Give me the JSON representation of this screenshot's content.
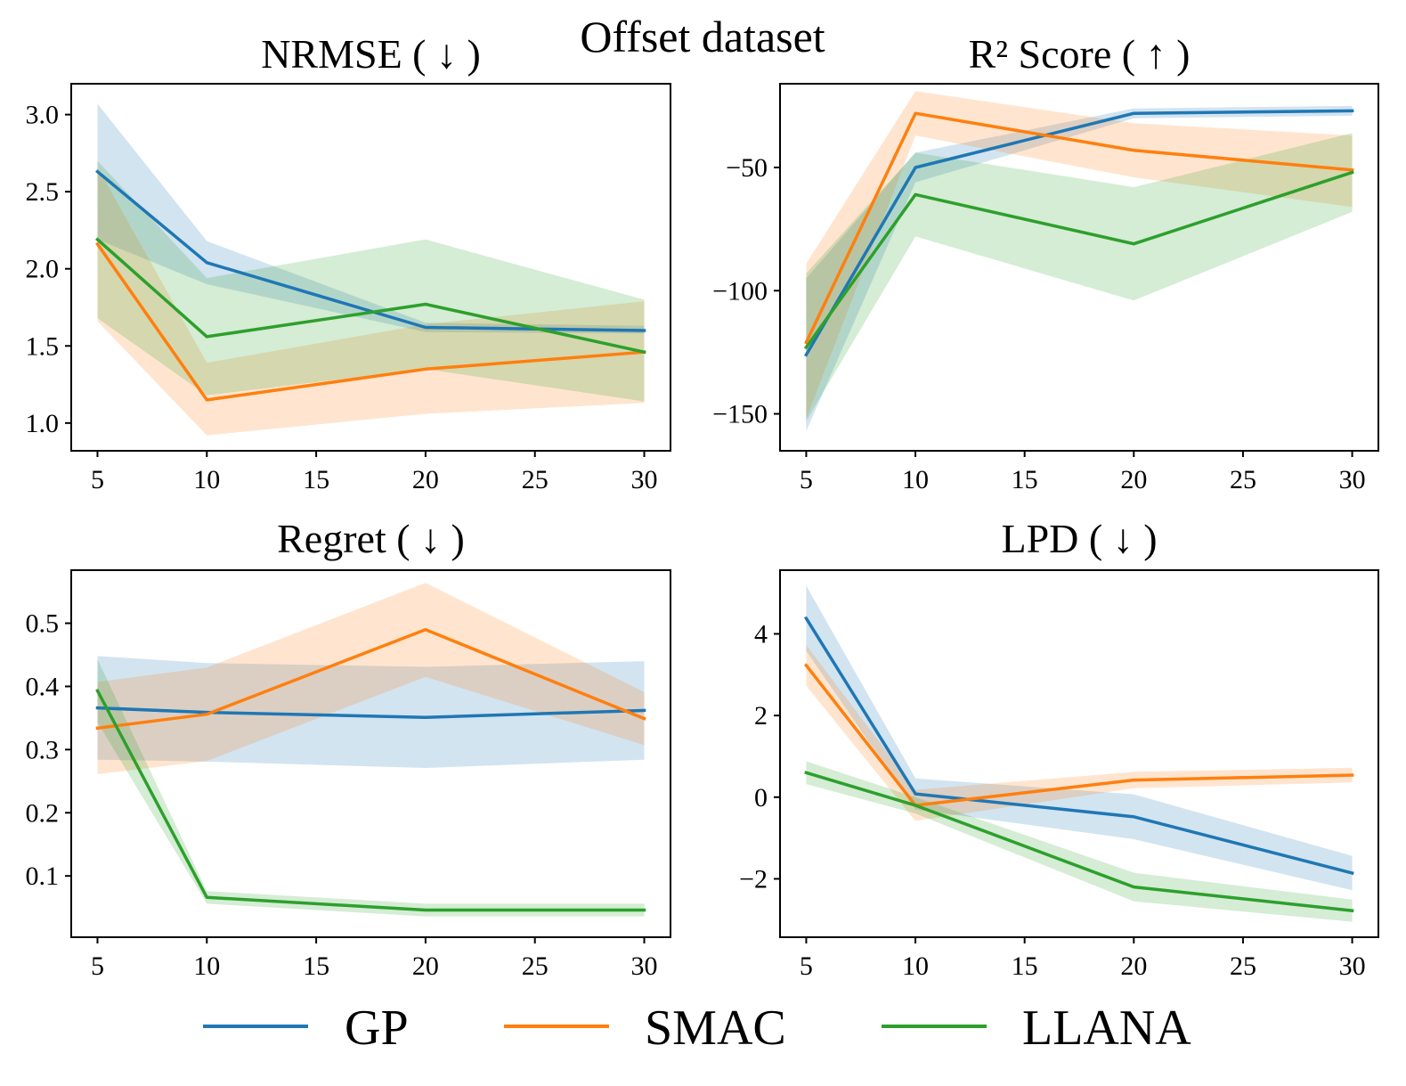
{
  "figure": {
    "title": "Offset dataset",
    "legend": [
      {
        "name": "GP",
        "color": "#1f77b4"
      },
      {
        "name": "SMAC",
        "color": "#ff7f0e"
      },
      {
        "name": "LLANA",
        "color": "#2ca02c"
      }
    ]
  },
  "chart_data": [
    {
      "type": "line",
      "title": "NRMSE ( ↓ )",
      "x": [
        5,
        10,
        20,
        30
      ],
      "xlim": [
        3.8,
        31.2
      ],
      "ylim": [
        0.82,
        3.2
      ],
      "xticks": [
        5,
        10,
        15,
        20,
        25,
        30
      ],
      "xtick_labels": [
        "5",
        "10",
        "15",
        "20",
        "25",
        "30"
      ],
      "yticks": [
        1.0,
        1.5,
        2.0,
        2.5,
        3.0
      ],
      "ytick_labels": [
        "1.0",
        "1.5",
        "2.0",
        "2.5",
        "3.0"
      ],
      "series": [
        {
          "name": "GP",
          "color": "#1f77b4",
          "values": [
            2.63,
            2.04,
            1.62,
            1.6
          ],
          "lower": [
            2.19,
            1.9,
            1.59,
            1.58
          ],
          "upper": [
            3.07,
            2.18,
            1.65,
            1.63
          ]
        },
        {
          "name": "SMAC",
          "color": "#ff7f0e",
          "values": [
            2.16,
            1.15,
            1.35,
            1.46
          ],
          "lower": [
            1.66,
            0.92,
            1.06,
            1.13
          ],
          "upper": [
            2.66,
            1.39,
            1.64,
            1.79
          ]
        },
        {
          "name": "LLANA",
          "color": "#2ca02c",
          "values": [
            2.19,
            1.56,
            1.77,
            1.46
          ],
          "lower": [
            1.68,
            1.18,
            1.35,
            1.14
          ],
          "upper": [
            2.7,
            1.94,
            2.19,
            1.8
          ]
        }
      ]
    },
    {
      "type": "line",
      "title": "R² Score ( ↑ )",
      "x": [
        5,
        10,
        20,
        30
      ],
      "xlim": [
        3.8,
        31.2
      ],
      "ylim": [
        -165,
        -16
      ],
      "xticks": [
        5,
        10,
        15,
        20,
        25,
        30
      ],
      "xtick_labels": [
        "5",
        "10",
        "15",
        "20",
        "25",
        "30"
      ],
      "yticks": [
        -150,
        -100,
        -50
      ],
      "ytick_labels": [
        "−150",
        "−100",
        "−50"
      ],
      "series": [
        {
          "name": "GP",
          "color": "#1f77b4",
          "values": [
            -126,
            -50,
            -28,
            -27
          ],
          "lower": [
            -157,
            -56,
            -30,
            -29
          ],
          "upper": [
            -95,
            -44,
            -26,
            -25
          ]
        },
        {
          "name": "SMAC",
          "color": "#ff7f0e",
          "values": [
            -121,
            -28,
            -43,
            -51
          ],
          "lower": [
            -152,
            -37,
            -54,
            -66
          ],
          "upper": [
            -89,
            -19,
            -32,
            -37
          ]
        },
        {
          "name": "LLANA",
          "color": "#2ca02c",
          "values": [
            -123,
            -61,
            -81,
            -52
          ],
          "lower": [
            -153,
            -78,
            -104,
            -68
          ],
          "upper": [
            -93,
            -44,
            -58,
            -36
          ]
        }
      ]
    },
    {
      "type": "line",
      "title": "Regret ( ↓ )",
      "x": [
        5,
        10,
        20,
        30
      ],
      "xlim": [
        3.8,
        31.2
      ],
      "ylim": [
        0.003,
        0.584
      ],
      "xticks": [
        5,
        10,
        15,
        20,
        25,
        30
      ],
      "xtick_labels": [
        "5",
        "10",
        "15",
        "20",
        "25",
        "30"
      ],
      "yticks": [
        0.1,
        0.2,
        0.3,
        0.4,
        0.5
      ],
      "ytick_labels": [
        "0.1",
        "0.2",
        "0.3",
        "0.4",
        "0.5"
      ],
      "series": [
        {
          "name": "GP",
          "color": "#1f77b4",
          "values": [
            0.366,
            0.359,
            0.351,
            0.362
          ],
          "lower": [
            0.284,
            0.281,
            0.271,
            0.284
          ],
          "upper": [
            0.448,
            0.437,
            0.431,
            0.44
          ]
        },
        {
          "name": "SMAC",
          "color": "#ff7f0e",
          "values": [
            0.334,
            0.356,
            0.49,
            0.349
          ],
          "lower": [
            0.261,
            0.282,
            0.415,
            0.307
          ],
          "upper": [
            0.407,
            0.43,
            0.564,
            0.391
          ]
        },
        {
          "name": "LLANA",
          "color": "#2ca02c",
          "values": [
            0.393,
            0.066,
            0.046,
            0.046
          ],
          "lower": [
            0.343,
            0.056,
            0.036,
            0.036
          ],
          "upper": [
            0.443,
            0.076,
            0.056,
            0.056
          ]
        }
      ]
    },
    {
      "type": "line",
      "title": "LPD ( ↓ )",
      "x": [
        5,
        10,
        20,
        30
      ],
      "xlim": [
        3.8,
        31.2
      ],
      "ylim": [
        -3.43,
        5.56
      ],
      "xticks": [
        5,
        10,
        15,
        20,
        25,
        30
      ],
      "xtick_labels": [
        "5",
        "10",
        "15",
        "20",
        "25",
        "30"
      ],
      "yticks": [
        -2,
        0,
        2,
        4
      ],
      "ytick_labels": [
        "−2",
        "0",
        "2",
        "4"
      ],
      "series": [
        {
          "name": "GP",
          "color": "#1f77b4",
          "values": [
            4.38,
            0.08,
            -0.48,
            -1.86
          ],
          "lower": [
            3.58,
            -0.3,
            -1.03,
            -2.28
          ],
          "upper": [
            5.18,
            0.46,
            0.07,
            -1.44
          ]
        },
        {
          "name": "SMAC",
          "color": "#ff7f0e",
          "values": [
            3.23,
            -0.2,
            0.42,
            0.54
          ],
          "lower": [
            2.73,
            -0.58,
            0.22,
            0.36
          ],
          "upper": [
            3.73,
            0.18,
            0.62,
            0.72
          ]
        },
        {
          "name": "LLANA",
          "color": "#2ca02c",
          "values": [
            0.6,
            -0.2,
            -2.2,
            -2.78
          ],
          "lower": [
            0.32,
            -0.4,
            -2.55,
            -3.05
          ],
          "upper": [
            0.88,
            0.0,
            -1.85,
            -2.51
          ]
        }
      ]
    }
  ]
}
